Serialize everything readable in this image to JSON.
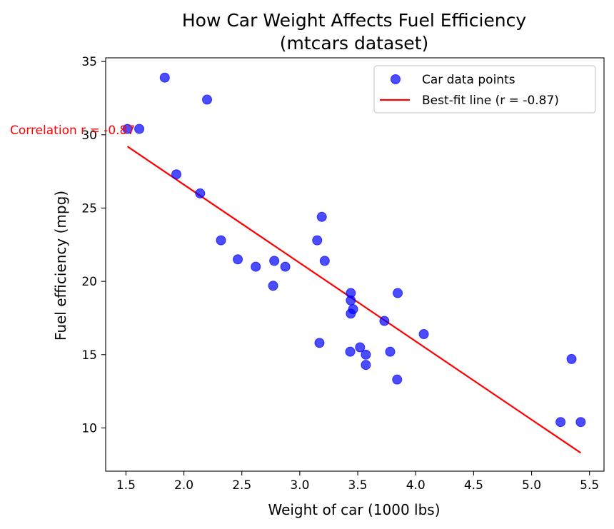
{
  "chart_data": {
    "type": "scatter",
    "title_line1": "How Car Weight Affects Fuel Efficiency",
    "title_line2": "(mtcars dataset)",
    "xlabel": "Weight of car (1000 lbs)",
    "ylabel": "Fuel efficiency (mpg)",
    "xlim": [
      1.325,
      5.625
    ],
    "ylim": [
      7.05,
      35.25
    ],
    "xticks": [
      1.5,
      2.0,
      2.5,
      3.0,
      3.5,
      4.0,
      4.5,
      5.0,
      5.5
    ],
    "xtick_labels": [
      "1.5",
      "2.0",
      "2.5",
      "3.0",
      "3.5",
      "4.0",
      "4.5",
      "5.0",
      "5.5"
    ],
    "yticks": [
      10,
      15,
      20,
      25,
      30,
      35
    ],
    "ytick_labels": [
      "10",
      "15",
      "20",
      "25",
      "30",
      "35"
    ],
    "grid": false,
    "legend_position": "top-right",
    "annotation": "Correlation r = -0.87",
    "series": [
      {
        "name": "Car data points",
        "kind": "scatter",
        "color": "#0000ff",
        "points": [
          {
            "x": 2.62,
            "y": 21.0
          },
          {
            "x": 2.875,
            "y": 21.0
          },
          {
            "x": 2.32,
            "y": 22.8
          },
          {
            "x": 3.215,
            "y": 21.4
          },
          {
            "x": 3.44,
            "y": 18.7
          },
          {
            "x": 3.46,
            "y": 18.1
          },
          {
            "x": 3.57,
            "y": 14.3
          },
          {
            "x": 3.19,
            "y": 24.4
          },
          {
            "x": 3.15,
            "y": 22.8
          },
          {
            "x": 3.44,
            "y": 19.2
          },
          {
            "x": 3.44,
            "y": 17.8
          },
          {
            "x": 4.07,
            "y": 16.4
          },
          {
            "x": 3.73,
            "y": 17.3
          },
          {
            "x": 3.78,
            "y": 15.2
          },
          {
            "x": 5.25,
            "y": 10.4
          },
          {
            "x": 5.424,
            "y": 10.4
          },
          {
            "x": 5.345,
            "y": 14.7
          },
          {
            "x": 2.2,
            "y": 32.4
          },
          {
            "x": 1.615,
            "y": 30.4
          },
          {
            "x": 1.835,
            "y": 33.9
          },
          {
            "x": 2.465,
            "y": 21.5
          },
          {
            "x": 3.52,
            "y": 15.5
          },
          {
            "x": 3.435,
            "y": 15.2
          },
          {
            "x": 3.84,
            "y": 13.3
          },
          {
            "x": 3.845,
            "y": 19.2
          },
          {
            "x": 1.935,
            "y": 27.3
          },
          {
            "x": 2.14,
            "y": 26.0
          },
          {
            "x": 1.513,
            "y": 30.4
          },
          {
            "x": 3.17,
            "y": 15.8
          },
          {
            "x": 2.77,
            "y": 19.7
          },
          {
            "x": 3.57,
            "y": 15.0
          },
          {
            "x": 2.78,
            "y": 21.4
          }
        ]
      },
      {
        "name": "Best-fit line (r = -0.87)",
        "kind": "line",
        "color": "#ff0000",
        "points": [
          {
            "x": 1.513,
            "y": 29.2
          },
          {
            "x": 5.424,
            "y": 8.3
          }
        ]
      }
    ]
  }
}
